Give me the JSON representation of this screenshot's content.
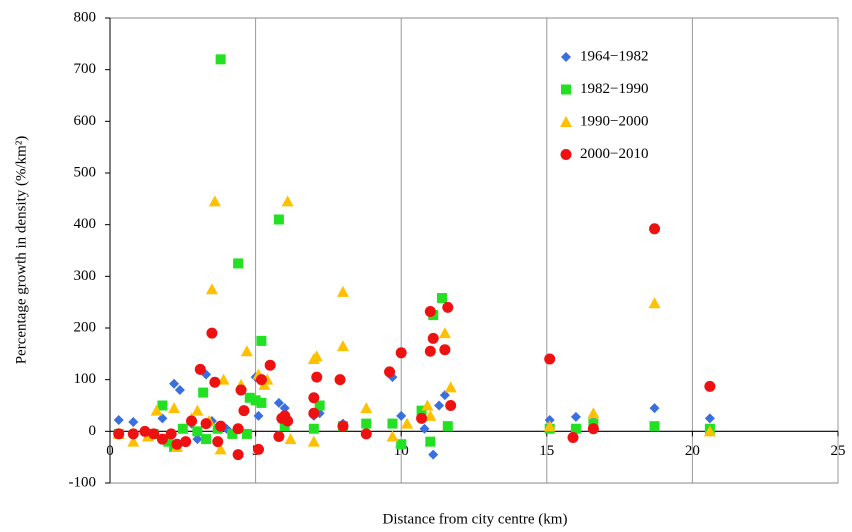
{
  "chart_data": {
    "type": "scatter",
    "xlabel": "Distance from city centre (km)",
    "ylabel": "Percentage growth in density (%/km²)",
    "xlim": [
      0,
      25
    ],
    "xticks": [
      0,
      5,
      10,
      15,
      20,
      25
    ],
    "ylim": [
      -100,
      800
    ],
    "yticks": [
      -100,
      0,
      100,
      200,
      300,
      400,
      500,
      600,
      700,
      800
    ],
    "grid": "x",
    "legend": "upper right",
    "series": [
      {
        "name": "1964−1982",
        "color": "#3a6fe0",
        "marker": "diamond",
        "x": [
          0.3,
          0.8,
          1.3,
          1.8,
          2.2,
          2.4,
          2.8,
          3.3,
          3.5,
          4.0,
          4.6,
          5.1,
          5.0,
          5.8,
          6.0,
          7.0,
          7.2,
          8.0,
          9.7,
          10.0,
          10.8,
          11.1,
          11.3,
          11.5,
          15.1,
          16.0,
          16.6,
          18.7,
          20.6,
          2.0,
          3.0
        ],
        "values": [
          22,
          18,
          -5,
          25,
          92,
          80,
          15,
          110,
          20,
          5,
          40,
          30,
          105,
          55,
          45,
          30,
          35,
          15,
          105,
          30,
          5,
          -45,
          50,
          70,
          22,
          28,
          20,
          45,
          25,
          -10,
          -15
        ]
      },
      {
        "name": "1982−1990",
        "color": "#22e022",
        "marker": "square",
        "x": [
          0.3,
          1.5,
          1.8,
          2.0,
          2.5,
          3.0,
          3.2,
          3.3,
          3.7,
          3.8,
          4.2,
          4.4,
          4.7,
          4.8,
          5.0,
          5.2,
          5.2,
          5.8,
          6.0,
          7.0,
          7.2,
          8.0,
          8.8,
          9.7,
          10.0,
          10.7,
          11.0,
          11.1,
          11.4,
          11.6,
          15.1,
          16.0,
          16.6,
          18.7,
          20.6,
          2.2
        ],
        "values": [
          -5,
          -5,
          50,
          -20,
          5,
          0,
          75,
          -15,
          5,
          720,
          -5,
          325,
          -5,
          65,
          60,
          175,
          55,
          410,
          10,
          5,
          50,
          10,
          15,
          15,
          -25,
          40,
          -20,
          225,
          258,
          10,
          5,
          5,
          15,
          10,
          5,
          -30
        ]
      },
      {
        "name": "1990−2000",
        "color": "#ffc000",
        "marker": "triangle",
        "x": [
          0.3,
          0.8,
          1.3,
          1.6,
          2.2,
          2.3,
          2.8,
          3.0,
          3.4,
          3.5,
          3.6,
          3.8,
          3.9,
          4.5,
          4.7,
          5.1,
          5.3,
          5.4,
          6.1,
          6.2,
          7.0,
          7.1,
          7.0,
          8.0,
          8.0,
          8.8,
          9.7,
          10.2,
          10.9,
          11.0,
          11.5,
          11.7,
          15.1,
          16.6,
          18.7,
          20.6
        ],
        "values": [
          -5,
          -20,
          -10,
          40,
          45,
          -30,
          25,
          40,
          20,
          275,
          445,
          -35,
          100,
          90,
          155,
          110,
          90,
          100,
          445,
          -15,
          140,
          145,
          -20,
          270,
          165,
          45,
          -10,
          15,
          50,
          30,
          190,
          85,
          10,
          35,
          248,
          0
        ]
      },
      {
        "name": "2000−2010",
        "color": "#ee1111",
        "marker": "circle",
        "x": [
          0.3,
          0.8,
          1.2,
          1.5,
          1.8,
          2.1,
          2.3,
          2.6,
          2.8,
          3.1,
          3.3,
          3.5,
          3.6,
          3.8,
          3.7,
          4.4,
          4.4,
          4.5,
          4.6,
          5.1,
          5.2,
          5.5,
          5.8,
          5.9,
          6.0,
          6.1,
          7.0,
          7.0,
          7.1,
          7.9,
          8.0,
          8.8,
          9.6,
          10.0,
          10.7,
          11.0,
          11.0,
          11.1,
          11.5,
          11.6,
          11.7,
          15.1,
          15.9,
          16.6,
          18.7,
          20.6
        ],
        "values": [
          -5,
          -5,
          0,
          -5,
          -15,
          -5,
          -25,
          -20,
          20,
          120,
          15,
          190,
          95,
          10,
          -20,
          -45,
          5,
          80,
          40,
          -35,
          100,
          128,
          -10,
          25,
          30,
          20,
          65,
          35,
          105,
          100,
          10,
          -5,
          115,
          152,
          25,
          232,
          155,
          180,
          158,
          240,
          50,
          140,
          -12,
          5,
          392,
          87
        ]
      }
    ]
  }
}
